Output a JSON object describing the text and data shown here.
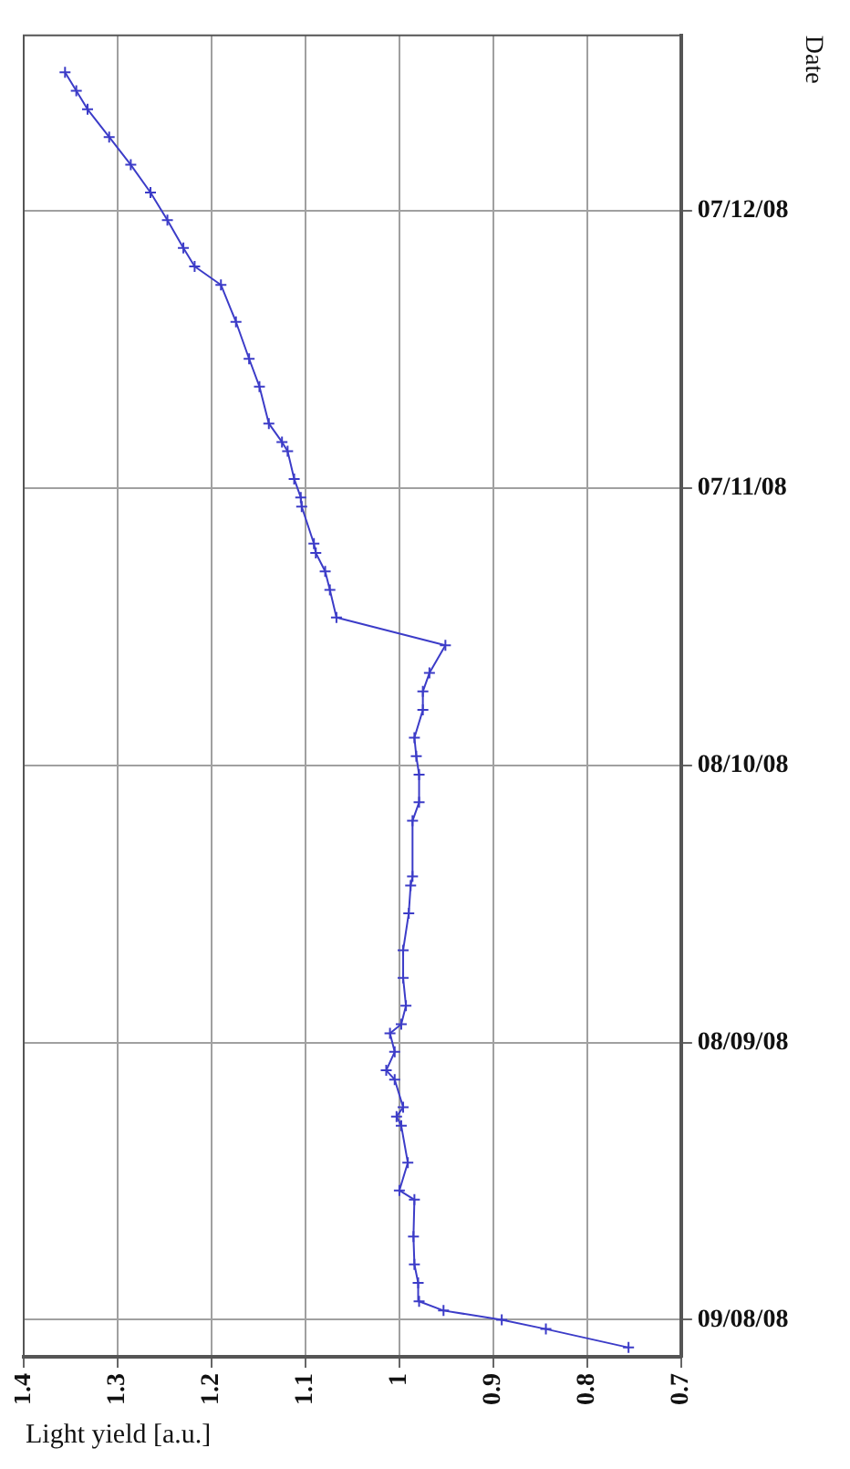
{
  "chart_data": {
    "type": "line",
    "orientation": "horizontal",
    "xlabel": "Light yield [a.u.]",
    "ylabel": "Date",
    "x": [
      "2008-08-06",
      "2008-08-08",
      "2008-08-09",
      "2008-08-10",
      "2008-08-11",
      "2008-08-13",
      "2008-08-15",
      "2008-08-18",
      "2008-08-22",
      "2008-08-23",
      "2008-08-26",
      "2008-08-30",
      "2008-08-31",
      "2008-09-01",
      "2008-09-04",
      "2008-09-05",
      "2008-09-07",
      "2008-09-09",
      "2008-09-10",
      "2008-09-12",
      "2008-09-15",
      "2008-09-18",
      "2008-09-22",
      "2008-09-25",
      "2008-09-26",
      "2008-10-02",
      "2008-10-04",
      "2008-10-07",
      "2008-10-09",
      "2008-10-11",
      "2008-10-14",
      "2008-10-16",
      "2008-10-18",
      "2008-10-21",
      "2008-10-24",
      "2008-10-27",
      "2008-10-29",
      "2008-10-31",
      "2008-11-01",
      "2008-11-05",
      "2008-11-06",
      "2008-11-08",
      "2008-11-11",
      "2008-11-12",
      "2008-11-14",
      "2008-11-18",
      "2008-11-21",
      "2008-11-25",
      "2008-11-29",
      "2008-12-01",
      "2008-12-03",
      "2008-12-06",
      "2008-12-09",
      "2008-12-12",
      "2008-12-15",
      "2008-12-18",
      "2008-12-20",
      "2008-12-22"
    ],
    "series": [
      {
        "color": "#3c3cc8",
        "values": [
          0.756,
          0.844,
          0.891,
          0.953,
          0.979,
          0.98,
          0.984,
          0.985,
          0.984,
          1.0,
          0.991,
          0.998,
          1.003,
          0.996,
          1.005,
          1.014,
          1.005,
          1.01,
          0.998,
          0.993,
          0.996,
          0.996,
          0.99,
          0.988,
          0.986,
          0.986,
          0.979,
          0.979,
          0.982,
          0.984,
          0.975,
          0.975,
          0.968,
          0.951,
          1.067,
          1.074,
          1.079,
          1.089,
          1.091,
          1.104,
          1.105,
          1.112,
          1.119,
          1.125,
          1.139,
          1.149,
          1.16,
          1.174,
          1.19,
          1.218,
          1.23,
          1.247,
          1.265,
          1.286,
          1.309,
          1.332,
          1.344,
          1.356
        ]
      }
    ],
    "xlim": [
      1.4,
      0.7
    ],
    "xticks": [
      1.4,
      1.3,
      1.2,
      1.1,
      1,
      0.9,
      0.8,
      0.7
    ],
    "ylim": [
      "2008-08-05",
      "2008-12-26"
    ],
    "yticks": [
      {
        "value": "2008-08-09",
        "label": "09/08/08"
      },
      {
        "value": "2008-09-08",
        "label": "08/09/08"
      },
      {
        "value": "2008-10-08",
        "label": "08/10/08"
      },
      {
        "value": "2008-11-07",
        "label": "07/11/08"
      },
      {
        "value": "2008-12-07",
        "label": "07/12/08"
      }
    ],
    "grid": true,
    "legend": false,
    "marker": "cross",
    "line_style": "solid"
  }
}
